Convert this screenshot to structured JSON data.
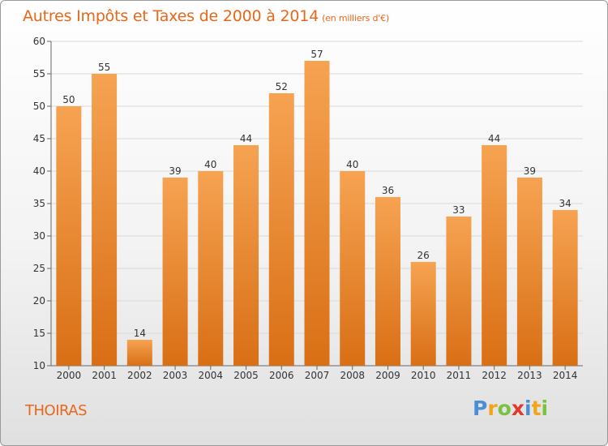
{
  "title": "Autres Impôts et Taxes de 2000 à 2014",
  "subtitle": "(en milliers d'€)",
  "commune": "THOIRAS",
  "logo": {
    "letters": [
      "P",
      "r",
      "o",
      "x",
      "i",
      "t",
      "i"
    ],
    "colors": [
      "#4a8fd6",
      "#f2a51b",
      "#7cc242",
      "#e03a2f",
      "#4a8fd6",
      "#f2a51b",
      "#7cc242"
    ]
  },
  "colors": {
    "accent": "#e8671a",
    "bar_top": "#f6a352",
    "bar_bottom": "#d96f15"
  },
  "chart_data": {
    "type": "bar",
    "title": "Autres Impôts et Taxes de 2000 à 2014",
    "subtitle": "(en milliers d'€)",
    "categories": [
      "2000",
      "2001",
      "2002",
      "2003",
      "2004",
      "2005",
      "2006",
      "2007",
      "2008",
      "2009",
      "2010",
      "2011",
      "2012",
      "2013",
      "2014"
    ],
    "values": [
      50,
      55,
      14,
      39,
      40,
      44,
      52,
      57,
      40,
      36,
      26,
      33,
      44,
      39,
      34
    ],
    "ylim": [
      10,
      60
    ],
    "yticks": [
      10,
      15,
      20,
      25,
      30,
      35,
      40,
      45,
      50,
      55,
      60
    ],
    "grid": true,
    "xlabel": "",
    "ylabel": ""
  }
}
